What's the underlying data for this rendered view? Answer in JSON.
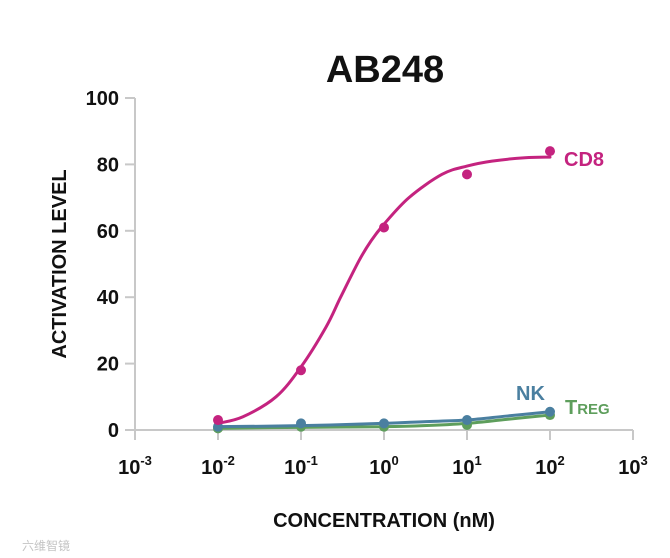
{
  "chart_data": {
    "type": "line",
    "title": "AB248",
    "xlabel": "CONCENTRATION (nM)",
    "ylabel": "ACTIVATION LEVEL",
    "xscale": "log",
    "xlim": [
      0.001,
      1000
    ],
    "ylim": [
      0,
      100
    ],
    "x_ticks": [
      {
        "base": "10",
        "exp": "-3"
      },
      {
        "base": "10",
        "exp": "-2"
      },
      {
        "base": "10",
        "exp": "-1"
      },
      {
        "base": "10",
        "exp": "0"
      },
      {
        "base": "10",
        "exp": "1"
      },
      {
        "base": "10",
        "exp": "2"
      },
      {
        "base": "10",
        "exp": "3"
      }
    ],
    "y_ticks": [
      "0",
      "20",
      "40",
      "60",
      "80",
      "100"
    ],
    "grid": false,
    "legend": "inline labels at line ends",
    "series": [
      {
        "name": "CD8",
        "color": "#c4237f",
        "x": [
          0.01,
          0.1,
          1,
          10,
          100
        ],
        "y": [
          3,
          18,
          61,
          77,
          84
        ],
        "curve": [
          0.01,
          0.02,
          0.05,
          0.1,
          0.2,
          0.3,
          0.5,
          0.7,
          1,
          2,
          5,
          10,
          20,
          50,
          100
        ],
        "curve_y": [
          2,
          4,
          10,
          19,
          31,
          40,
          51,
          57,
          62,
          70,
          77,
          79.5,
          81,
          82,
          82.2
        ]
      },
      {
        "name": "NK",
        "color": "#4a7fa0",
        "x": [
          0.01,
          0.1,
          1,
          10,
          100
        ],
        "y": [
          1,
          2,
          2,
          3,
          5.5
        ],
        "curve": [
          0.01,
          0.1,
          1,
          3,
          10,
          30,
          100
        ],
        "curve_y": [
          1,
          1.3,
          2,
          2.5,
          3,
          4.2,
          5.5
        ]
      },
      {
        "name": "Treg",
        "label_main": "T",
        "label_small": "REG",
        "color": "#5e9e5c",
        "x": [
          0.01,
          0.1,
          1,
          10,
          100
        ],
        "y": [
          0.5,
          1,
          1,
          1.5,
          4.5
        ],
        "curve": [
          0.01,
          0.1,
          1,
          3,
          10,
          30,
          100
        ],
        "curve_y": [
          0.5,
          0.8,
          1,
          1.3,
          2,
          3.2,
          4.5
        ]
      }
    ]
  },
  "watermark": "六维智镜"
}
